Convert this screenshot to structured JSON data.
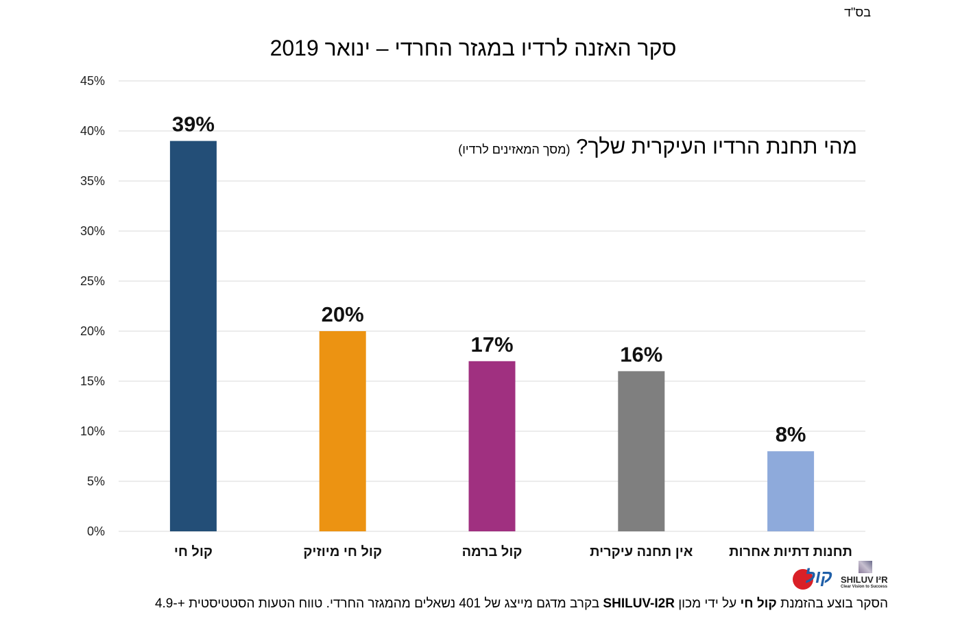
{
  "corner_mark": "בס\"ד",
  "chart_data": {
    "type": "bar",
    "title": "סקר האזנה לרדיו במגזר החרדי – ינואר 2019",
    "subtitle": "מהי תחנת הרדיו העיקרית שלך?",
    "subtitle_note": "(מסך המאזינים לרדיו)",
    "categories": [
      "קול חי",
      "קול חי מיוזיק",
      "קול ברמה",
      "אין תחנה עיקרית",
      "תחנות דתיות אחרות"
    ],
    "values": [
      39,
      20,
      17,
      16,
      8
    ],
    "data_labels": [
      "39%",
      "20%",
      "17%",
      "16%",
      "8%"
    ],
    "colors": [
      "#234e77",
      "#ec9312",
      "#a03080",
      "#7f7f7f",
      "#8eaadb"
    ],
    "ylim": [
      0,
      45
    ],
    "yticks": [
      "0%",
      "5%",
      "10%",
      "15%",
      "20%",
      "25%",
      "30%",
      "35%",
      "40%",
      "45%"
    ],
    "grid": true
  },
  "footer": {
    "p1": "הסקר בוצע בהזמנת ",
    "p2": "קול חי",
    "p3": " על ידי מכון ",
    "p4": "SHILUV-I2R",
    "p5": " בקרב מדגם מייצג של 401 נשאלים מהמגזר החרדי. טווח הטעות הסטטיסטית +-4.9"
  },
  "logos": {
    "kol_chai": "קול חי",
    "shiluv": "SHILUV I²R",
    "shiluv_tagline": "Clear Vision to Success"
  }
}
